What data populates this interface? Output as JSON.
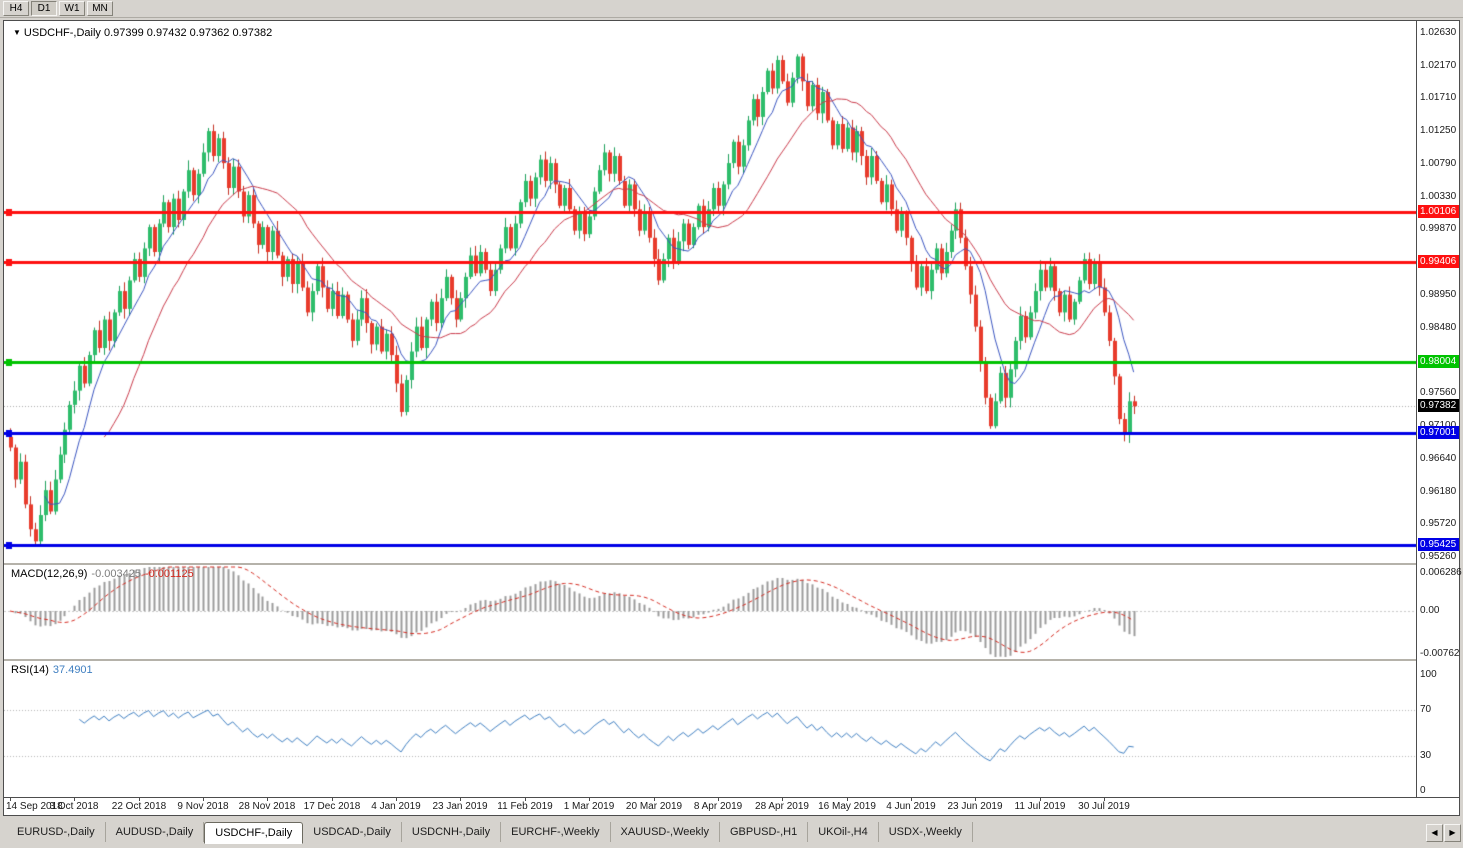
{
  "toolbar": {
    "timeframes": [
      {
        "label": "H4",
        "active": false
      },
      {
        "label": "D1",
        "active": true
      },
      {
        "label": "W1",
        "active": false
      },
      {
        "label": "MN",
        "active": false
      }
    ]
  },
  "icons": {
    "chart_marker": "▼",
    "tab_scroll_left": "◀",
    "tab_scroll_right": "▶"
  },
  "chart": {
    "title": "USDCHF-,Daily",
    "ohlc": "0.97399 0.97432 0.97362 0.97382"
  },
  "macd": {
    "name": "MACD(12,26,9)",
    "main_value": "-0.003425",
    "signal_value": "-0.001125",
    "axis_labels": [
      "0.006286",
      "0.00",
      "-0.00762"
    ]
  },
  "rsi": {
    "name": "RSI(14)",
    "value": "37.4901",
    "level_labels": [
      "100",
      "70",
      "30",
      "0"
    ],
    "levels": [
      100,
      70,
      30,
      0
    ]
  },
  "tabs": [
    {
      "label": "EURUSD-,Daily",
      "active": false
    },
    {
      "label": "AUDUSD-,Daily",
      "active": false
    },
    {
      "label": "USDCHF-,Daily",
      "active": true
    },
    {
      "label": "USDCAD-,Daily",
      "active": false
    },
    {
      "label": "USDCNH-,Daily",
      "active": false
    },
    {
      "label": "EURCHF-,Weekly",
      "active": false
    },
    {
      "label": "XAUUSD-,Weekly",
      "active": false
    },
    {
      "label": "GBPUSD-,H1",
      "active": false
    },
    {
      "label": "UKOil-,H4",
      "active": false
    },
    {
      "label": "USDX-,Weekly",
      "active": false
    }
  ],
  "chart_data": {
    "type": "candlestick",
    "symbol": "USDCHF-",
    "timeframe": "Daily",
    "current_price": 0.97382,
    "current_price_label": "0.97382",
    "y_min": 0.9526,
    "y_max": 1.0263,
    "axis_ticks": [
      "1.02630",
      "1.02170",
      "1.01710",
      "1.01250",
      "1.00790",
      "1.00330",
      "0.99870",
      "0.98950",
      "0.98480",
      "0.97560",
      "0.97100",
      "0.96640",
      "0.96180",
      "0.95720",
      "0.95260"
    ],
    "hlines": [
      {
        "label": "1.00106",
        "value": 1.00106,
        "color": "#fe1010"
      },
      {
        "label": "0.99406",
        "value": 0.99406,
        "color": "#fe1010"
      },
      {
        "label": "0.98004",
        "value": 0.98004,
        "color": "#00c300"
      },
      {
        "label": "0.97001",
        "value": 0.97001,
        "color": "#0000e6"
      },
      {
        "label": "0.95425",
        "value": 0.95425,
        "color": "#0000e6"
      }
    ],
    "ma_periods": {
      "fast": 8,
      "slow": 20
    },
    "dates": [
      "14 Sep 2018",
      "3 Oct 2018",
      "22 Oct 2018",
      "9 Nov 2018",
      "28 Nov 2018",
      "17 Dec 2018",
      "4 Jan 2019",
      "23 Jan 2019",
      "11 Feb 2019",
      "1 Mar 2019",
      "20 Mar 2019",
      "8 Apr 2019",
      "28 Apr 2019",
      "16 May 2019",
      "4 Jun 2019",
      "23 Jun 2019",
      "11 Jul 2019",
      "30 Jul 2019"
    ],
    "bars_per_date_label": 13,
    "closes": [
      0.968,
      0.9635,
      0.966,
      0.96,
      0.9565,
      0.9548,
      0.9585,
      0.962,
      0.959,
      0.9635,
      0.967,
      0.9705,
      0.974,
      0.976,
      0.9795,
      0.977,
      0.981,
      0.9845,
      0.982,
      0.986,
      0.983,
      0.987,
      0.99,
      0.9875,
      0.9915,
      0.9945,
      0.992,
      0.996,
      0.999,
      0.9955,
      0.9995,
      1.0025,
      0.999,
      1.003,
      1.0,
      1.004,
      1.007,
      1.0035,
      1.0065,
      1.0095,
      1.0125,
      1.009,
      1.0115,
      1.008,
      1.0045,
      1.0075,
      1.004,
      1.0005,
      1.0035,
      0.9995,
      0.9965,
      0.999,
      0.9955,
      0.9985,
      0.995,
      0.992,
      0.9945,
      0.991,
      0.994,
      0.9905,
      0.987,
      0.99,
      0.9935,
      0.9905,
      0.9875,
      0.99,
      0.9865,
      0.9895,
      0.986,
      0.983,
      0.986,
      0.989,
      0.9855,
      0.9825,
      0.985,
      0.9815,
      0.984,
      0.981,
      0.977,
      0.973,
      0.9775,
      0.9815,
      0.985,
      0.982,
      0.986,
      0.9885,
      0.9855,
      0.989,
      0.992,
      0.989,
      0.986,
      0.989,
      0.992,
      0.995,
      0.9925,
      0.9955,
      0.993,
      0.99,
      0.993,
      0.996,
      0.999,
      0.996,
      0.9995,
      1.0025,
      1.0055,
      1.003,
      1.006,
      1.0085,
      1.0055,
      1.008,
      1.005,
      1.002,
      1.0045,
      1.0015,
      0.9985,
      1.001,
      0.998,
      1.0005,
      1.004,
      1.007,
      1.0095,
      1.0065,
      1.009,
      1.0055,
      1.002,
      1.005,
      1.0015,
      0.9985,
      1.001,
      0.9975,
      0.9945,
      0.9915,
      0.9945,
      0.9975,
      0.994,
      0.997,
      0.9995,
      0.9965,
      0.999,
      1.002,
      0.999,
      1.0015,
      1.0045,
      1.002,
      1.005,
      1.008,
      1.011,
      1.0075,
      1.0105,
      1.014,
      1.017,
      1.0145,
      1.018,
      1.021,
      1.0185,
      1.0225,
      1.0195,
      1.0165,
      1.02,
      1.023,
      1.0195,
      1.016,
      1.019,
      1.015,
      1.018,
      1.014,
      1.0105,
      1.0135,
      1.01,
      1.013,
      1.0095,
      1.0125,
      1.009,
      1.006,
      1.009,
      1.0055,
      1.0025,
      1.005,
      1.0015,
      0.9985,
      1.001,
      0.9975,
      0.994,
      0.9905,
      0.9935,
      0.99,
      0.993,
      0.996,
      0.9925,
      0.9955,
      0.9985,
      1.0015,
      0.9975,
      0.9935,
      0.9895,
      0.985,
      0.98,
      0.975,
      0.971,
      0.9745,
      0.9785,
      0.975,
      0.979,
      0.983,
      0.9865,
      0.9835,
      0.987,
      0.99,
      0.993,
      0.9905,
      0.9935,
      0.99,
      0.987,
      0.9895,
      0.986,
      0.9885,
      0.9915,
      0.9945,
      0.991,
      0.994,
      0.9905,
      0.987,
      0.983,
      0.978,
      0.972,
      0.97,
      0.9745,
      0.9738
    ]
  }
}
